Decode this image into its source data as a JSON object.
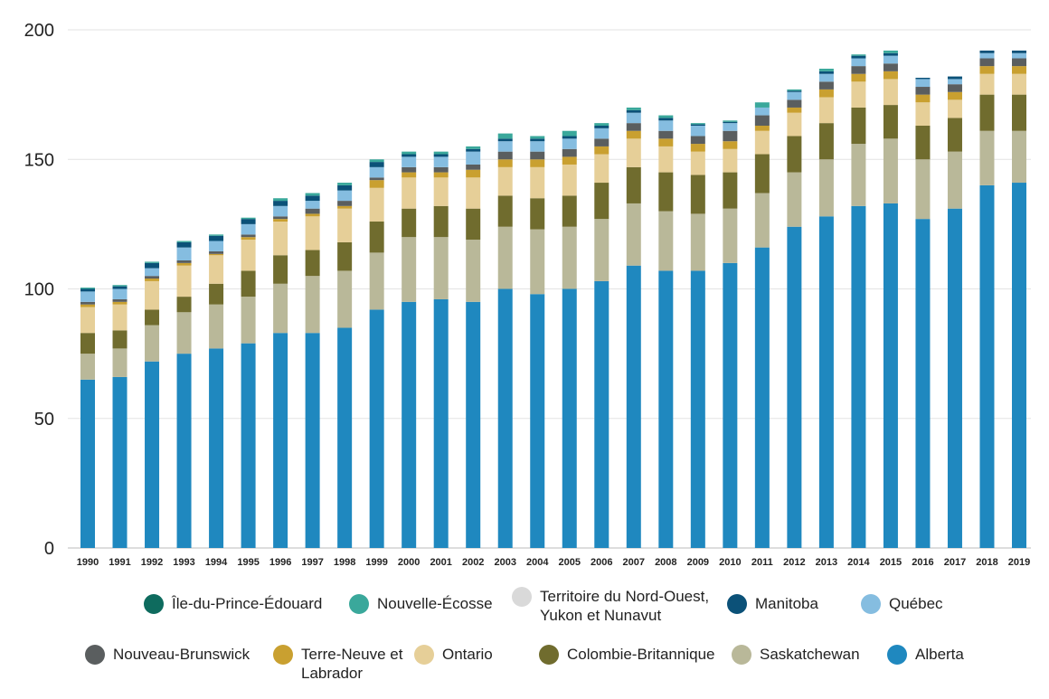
{
  "chart_data": {
    "type": "bar",
    "stacked": true,
    "ylim": [
      0,
      200
    ],
    "yticks": [
      0,
      50,
      100,
      150,
      200
    ],
    "grid": true,
    "legend_position": "bottom",
    "categories": [
      "1990",
      "1991",
      "1992",
      "1993",
      "1994",
      "1995",
      "1996",
      "1997",
      "1998",
      "1999",
      "2000",
      "2001",
      "2002",
      "2003",
      "2004",
      "2005",
      "2006",
      "2007",
      "2008",
      "2009",
      "2010",
      "2011",
      "2012",
      "2013",
      "2014",
      "2015",
      "2016",
      "2017",
      "2018",
      "2019"
    ],
    "series": [
      {
        "name": "Alberta",
        "color": "#1f88bf",
        "values": [
          65,
          66,
          72,
          75,
          77,
          79,
          83,
          83,
          85,
          92,
          95,
          96,
          95,
          100,
          98,
          100,
          103,
          109,
          107,
          107,
          110,
          116,
          124,
          128,
          132,
          133,
          127,
          131,
          140,
          141
        ]
      },
      {
        "name": "Saskatchewan",
        "color": "#b9b899",
        "values": [
          10,
          11,
          14,
          16,
          17,
          18,
          19,
          22,
          22,
          22,
          25,
          24,
          24,
          24,
          25,
          24,
          24,
          24,
          23,
          22,
          21,
          21,
          21,
          22,
          24,
          25,
          23,
          22,
          21,
          20
        ]
      },
      {
        "name": "Colombie-Britannique",
        "color": "#706c2e",
        "values": [
          8,
          7,
          6,
          6,
          8,
          10,
          11,
          10,
          11,
          12,
          11,
          12,
          12,
          12,
          12,
          12,
          14,
          14,
          15,
          15,
          14,
          15,
          14,
          14,
          14,
          13,
          13,
          13,
          14,
          14
        ]
      },
      {
        "name": "Ontario",
        "color": "#e6cf98",
        "values": [
          10,
          10,
          11,
          12,
          11,
          12,
          13,
          13,
          13,
          13,
          12,
          11,
          12,
          11,
          12,
          12,
          11,
          11,
          10,
          9,
          9,
          9,
          9,
          10,
          10,
          10,
          9,
          7,
          8,
          8
        ]
      },
      {
        "name": "Terre-Neuve et Labrador",
        "color": "#c9a030",
        "values": [
          1,
          1,
          1,
          1,
          0.5,
          1,
          1,
          1,
          1,
          3,
          2,
          2,
          3,
          3,
          3,
          3,
          3,
          3,
          3,
          3,
          3,
          2,
          2,
          3,
          3,
          3,
          3,
          3,
          3,
          3
        ]
      },
      {
        "name": "Nouveau-Brunswick",
        "color": "#5a5e5f",
        "values": [
          1,
          1,
          1,
          1,
          1,
          1,
          1,
          2,
          2,
          1,
          2,
          2,
          2,
          3,
          3,
          3,
          3,
          3,
          3,
          3,
          4,
          4,
          3,
          3,
          3,
          3,
          3,
          3,
          3,
          3
        ]
      },
      {
        "name": "Québec",
        "color": "#85bde0",
        "values": [
          4,
          4,
          3,
          5,
          4,
          4,
          4,
          3,
          4,
          4,
          4,
          4,
          5,
          4,
          4,
          4,
          4,
          4,
          4,
          4,
          3,
          3,
          3,
          3,
          3,
          3,
          3,
          2,
          2,
          2
        ]
      },
      {
        "name": "Manitoba",
        "color": "#0b5178",
        "values": [
          1,
          1,
          2,
          2,
          2,
          2,
          2,
          2,
          2,
          2,
          1,
          1,
          1,
          1,
          1,
          1,
          1,
          1,
          1,
          0.5,
          0.5,
          0,
          0.5,
          1,
          1,
          1,
          0.5,
          1,
          1,
          1
        ]
      },
      {
        "name": "Territoire du Nord-Ouest, Yukon et Nunavut",
        "color": "#d9d9d9",
        "values": [
          0,
          0,
          0,
          0,
          0,
          0,
          0,
          0,
          0,
          0,
          0,
          0,
          0,
          0,
          0,
          0,
          0,
          0,
          0,
          0,
          0,
          0,
          0,
          0,
          0,
          0,
          0,
          0,
          0,
          0
        ]
      },
      {
        "name": "Nouvelle-Écosse",
        "color": "#3aa89b",
        "values": [
          0.5,
          0.5,
          0.5,
          0.5,
          0.5,
          0.5,
          1,
          1,
          1,
          1,
          1,
          1,
          1,
          2,
          1,
          2,
          1,
          1,
          1,
          0.5,
          0.5,
          2,
          0.5,
          1,
          0.5,
          1,
          0,
          0,
          0,
          0
        ]
      },
      {
        "name": "Île-du-Prince-Édouard",
        "color": "#0e6b5e",
        "values": [
          0,
          0,
          0,
          0,
          0,
          0,
          0,
          0,
          0,
          0,
          0,
          0,
          0,
          0,
          0,
          0,
          0,
          0,
          0,
          0,
          0,
          0,
          0,
          0,
          0,
          0,
          0,
          0,
          0,
          0
        ]
      }
    ]
  },
  "legend": {
    "row1": [
      "Île-du-Prince-Édouard",
      "Nouvelle-Écosse",
      "Territoire du Nord-Ouest, Yukon et Nunavut",
      "Manitoba",
      "Québec"
    ],
    "row2": [
      "Nouveau-Brunswick",
      "Terre-Neuve et Labrador",
      "Ontario",
      "Colombie-Britannique",
      "Saskatchewan",
      "Alberta"
    ]
  }
}
